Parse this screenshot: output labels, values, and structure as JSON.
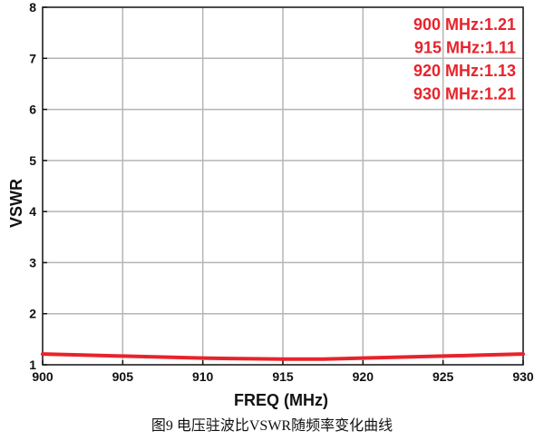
{
  "chart_data": {
    "type": "line",
    "xlabel": "FREQ (MHz)",
    "ylabel": "VSWR",
    "xlim": [
      900,
      930
    ],
    "ylim": [
      1,
      8
    ],
    "x_ticks": [
      900,
      905,
      910,
      915,
      920,
      925,
      930
    ],
    "y_ticks": [
      1,
      2,
      3,
      4,
      5,
      6,
      7,
      8
    ],
    "grid": true,
    "series": [
      {
        "color": "#e8232b",
        "x": [
          900,
          902.5,
          905,
          907.5,
          910,
          912.5,
          915,
          917.5,
          920,
          922.5,
          925,
          927.5,
          930
        ],
        "y": [
          1.21,
          1.19,
          1.17,
          1.15,
          1.13,
          1.12,
          1.11,
          1.11,
          1.13,
          1.15,
          1.17,
          1.19,
          1.21
        ]
      }
    ],
    "annotations": [
      "900 MHz:1.21",
      "915 MHz:1.11",
      "920 MHz:1.13",
      "930 MHz:1.21"
    ],
    "annotation_color": "#e8232b",
    "grid_color": "#b5b5b5"
  },
  "caption": "图9 电压驻波比VSWR随频率变化曲线"
}
